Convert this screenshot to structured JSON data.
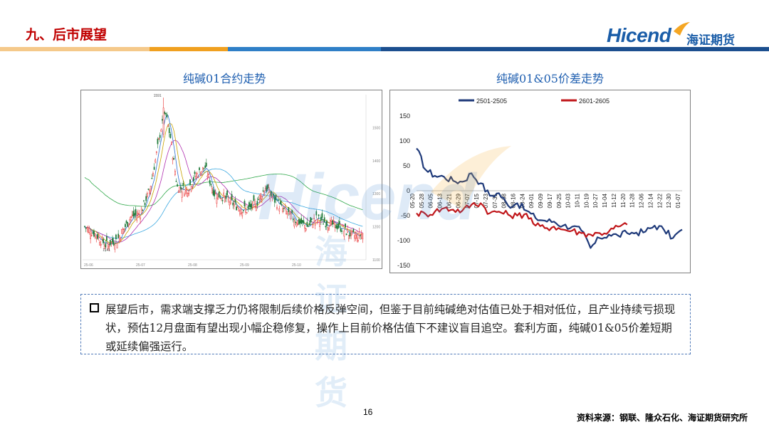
{
  "header": {
    "title": "九、后市展望",
    "brand_name": "Hicend",
    "brand_cn": "海证期货"
  },
  "charts": {
    "left_title": "纯碱01合约走势",
    "right_title": "纯碱01&05价差走势"
  },
  "watermark": {
    "brand_name": "Hicend",
    "brand_cn": "海证期货"
  },
  "kline": {
    "high_label": "1591",
    "low_label": "1141",
    "yticks": [
      "1500",
      "1400",
      "1300",
      "1200",
      "1100"
    ],
    "xticks": [
      "25-06",
      "25-07",
      "25-08",
      "25-09",
      "25-10"
    ],
    "colors": {
      "up": "#e83030",
      "down": "#1f7a3a",
      "ma5": "#2d6fd2",
      "ma10": "#c8a300",
      "ma20": "#b030b0",
      "ma60": "#3aa8e0",
      "ma120": "#2fa84a"
    }
  },
  "chart_data": {
    "type": "line",
    "title": "",
    "ylim": [
      -150,
      150
    ],
    "yticks": [
      150,
      100,
      50,
      0,
      -50,
      -100,
      -150
    ],
    "x": [
      "05-20",
      "05-28",
      "06-05",
      "06-13",
      "06-21",
      "06-29",
      "07-07",
      "07-15",
      "07-23",
      "07-31",
      "08-08",
      "08-16",
      "08-24",
      "09-01",
      "09-09",
      "09-17",
      "09-25",
      "10-03",
      "10-11",
      "10-19",
      "10-27",
      "11-04",
      "11-12",
      "11-20",
      "11-28",
      "12-06",
      "12-14",
      "12-22",
      "12-30",
      "01-07"
    ],
    "series": [
      {
        "name": "2501-2505",
        "color": "#1f3a7a",
        "values": [
          85,
          42,
          30,
          28,
          20,
          18,
          35,
          15,
          -10,
          -5,
          -30,
          -25,
          -40,
          -55,
          -60,
          -62,
          -70,
          -72,
          -80,
          -115,
          -95,
          -88,
          -90,
          -85,
          -84,
          -82,
          -70,
          -78,
          -95,
          -78
        ]
      },
      {
        "name": "2601-2605",
        "color": "#c0161a",
        "values": [
          -45,
          -47,
          -42,
          -35,
          -38,
          -40,
          -28,
          -25,
          -45,
          -42,
          -48,
          -50,
          -46,
          -70,
          -75,
          -72,
          -78,
          -80,
          -85,
          -88,
          -85,
          -82,
          -72,
          -68,
          null,
          null,
          null,
          null,
          null,
          null
        ]
      }
    ]
  },
  "note": {
    "text": "展望后市，需求端支撑乏力仍将限制后续价格反弹空间，但鉴于目前纯碱绝对估值已处于相对低位，且产业持续亏损现状，预估12月盘面有望出现小幅企稳修复，操作上目前价格估值下不建议盲目追空。套利方面，纯碱01&05价差短期或延续偏强运行。"
  },
  "footer": {
    "page_number": "16",
    "source": "资料来源：钢联、隆众石化、海证期货研究所"
  }
}
